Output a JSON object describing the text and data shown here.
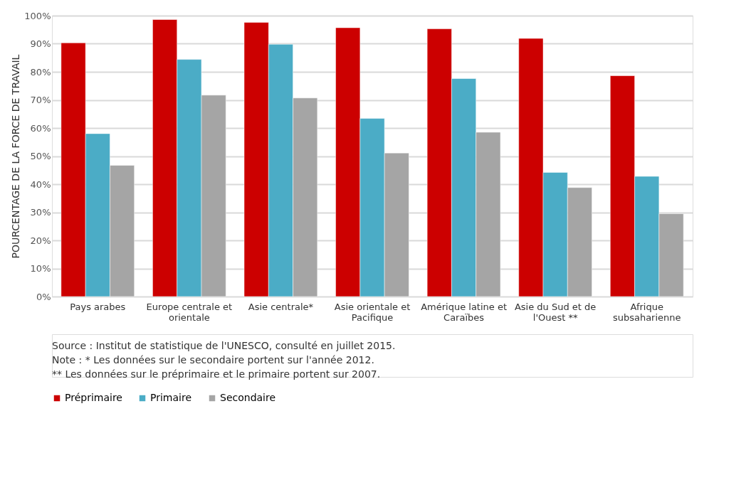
{
  "chart_data": {
    "type": "bar",
    "ylabel": "POURCENTAGE DE LA FORCE DE TRAVAIL",
    "categories": [
      "Pays arabes",
      "Europe centrale et orientale",
      "Asie centrale*",
      "Asie orientale et Pacifique",
      "Amérique latine et Caraïbes",
      "Asie du Sud et de l'Ouest **",
      "Afrique subsaharienne"
    ],
    "series": [
      {
        "name": "Préprimaire",
        "color": "#cc0000",
        "values": [
          90.3,
          98.6,
          97.6,
          95.7,
          95.3,
          91.9,
          78.6
        ]
      },
      {
        "name": "Primaire",
        "color": "#4bacc6",
        "values": [
          58.0,
          84.4,
          89.8,
          63.4,
          77.6,
          44.2,
          42.8
        ]
      },
      {
        "name": "Secondaire",
        "color": "#a5a5a5",
        "values": [
          46.7,
          71.7,
          70.7,
          51.1,
          58.5,
          38.8,
          29.5
        ]
      }
    ],
    "ylim": [
      0,
      100
    ],
    "yticks": [
      {
        "value": 0,
        "label": "0%"
      },
      {
        "value": 10,
        "label": "10%"
      },
      {
        "value": 20,
        "label": "20%"
      },
      {
        "value": 30,
        "label": "30%"
      },
      {
        "value": 40,
        "label": "40%"
      },
      {
        "value": 50,
        "label": "50%"
      },
      {
        "value": 60,
        "label": "60%"
      },
      {
        "value": 70,
        "label": "70%"
      },
      {
        "value": 80,
        "label": "80%"
      },
      {
        "value": 90,
        "label": "90%"
      },
      {
        "value": 100,
        "label": "100%"
      }
    ],
    "grid": "y",
    "legend": "bottom",
    "annotations": [
      "Source : Institut de statistique de l'UNESCO, consulté en juillet 2015.",
      "Note : * Les données sur le secondaire portent sur l'année 2012.",
      "** Les données sur le préprimaire et le primaire portent sur 2007."
    ]
  }
}
